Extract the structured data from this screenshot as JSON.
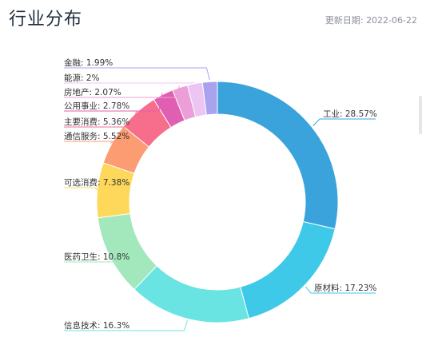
{
  "page": {
    "title": "行业分布",
    "update_label": "更新日期:",
    "update_date": "2022-06-22"
  },
  "chart_data": {
    "type": "pie",
    "title": "",
    "donut": true,
    "start_angle_deg": 0,
    "direction": "clockwise",
    "legend": "none",
    "slices": [
      {
        "name": "工业",
        "value": 28.57,
        "label": "工业: 28.57%",
        "color": "#3aa3dc"
      },
      {
        "name": "原材料",
        "value": 17.23,
        "label": "原材料: 17.23%",
        "color": "#3ec9e9"
      },
      {
        "name": "信息技术",
        "value": 16.3,
        "label": "信息技术: 16.3%",
        "color": "#6ae3e3"
      },
      {
        "name": "医药卫生",
        "value": 10.8,
        "label": "医药卫生: 10.8%",
        "color": "#a3e8bc"
      },
      {
        "name": "可选消费",
        "value": 7.38,
        "label": "可选消费: 7.38%",
        "color": "#fdd85a"
      },
      {
        "name": "通信服务",
        "value": 5.52,
        "label": "通信服务: 5.52%",
        "color": "#fc9c73"
      },
      {
        "name": "主要消费",
        "value": 5.36,
        "label": "主要消费: 5.36%",
        "color": "#f76e8c"
      },
      {
        "name": "公用事业",
        "value": 2.78,
        "label": "公用事业: 2.78%",
        "color": "#e05fb2"
      },
      {
        "name": "房地产",
        "value": 2.07,
        "label": "房地产: 2.07%",
        "color": "#ec9ed8"
      },
      {
        "name": "能源",
        "value": 2,
        "label": "能源: 2%",
        "color": "#ecc5f3"
      },
      {
        "name": "金融",
        "value": 1.99,
        "label": "金融: 1.99%",
        "color": "#a9a3ee"
      }
    ]
  }
}
